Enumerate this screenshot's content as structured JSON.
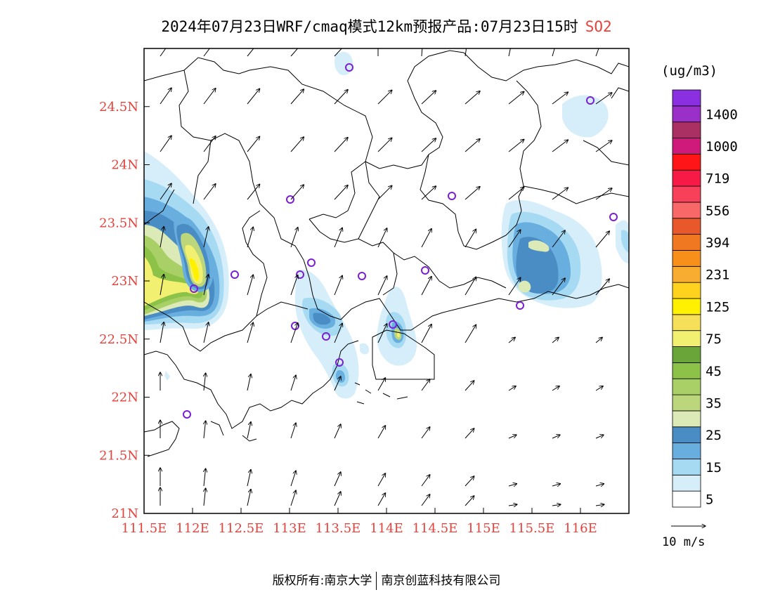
{
  "header": {
    "title": "2024年07月23日WRF/cmaq模式12km预报产品:07月23日15时",
    "pollutant": "SO2"
  },
  "colors": {
    "tick_label": "#e8413c",
    "station_marker": "#7a1fd6",
    "pollutant_label": "#e8413c"
  },
  "map": {
    "lon_range": [
      111.5,
      116.5
    ],
    "lat_range": [
      21.0,
      25.0
    ],
    "x_ticks": [
      "111.5E",
      "112E",
      "112.5E",
      "113E",
      "113.5E",
      "114E",
      "114.5E",
      "115E",
      "115.5E",
      "116E"
    ],
    "y_ticks": [
      "21N",
      "21.5N",
      "22N",
      "22.5N",
      "23N",
      "23.5N",
      "24N",
      "24.5N"
    ]
  },
  "legend": {
    "unit": "(ug/m3)",
    "bands": [
      {
        "color": "#ffffff",
        "label": "5"
      },
      {
        "color": "#d6eefa",
        "label": ""
      },
      {
        "color": "#a6daf3",
        "label": "15"
      },
      {
        "color": "#68aede",
        "label": ""
      },
      {
        "color": "#4a8cc4",
        "label": "25"
      },
      {
        "color": "#dceab7",
        "label": ""
      },
      {
        "color": "#bcd67c",
        "label": "35"
      },
      {
        "color": "#a8d066",
        "label": ""
      },
      {
        "color": "#8cc248",
        "label": "45"
      },
      {
        "color": "#6aa53a",
        "label": ""
      },
      {
        "color": "#f2f070",
        "label": "75"
      },
      {
        "color": "#f6e05a",
        "label": ""
      },
      {
        "color": "#fff100",
        "label": "125"
      },
      {
        "color": "#ffd21e",
        "label": ""
      },
      {
        "color": "#f9ad30",
        "label": "231"
      },
      {
        "color": "#f88f1a",
        "label": ""
      },
      {
        "color": "#f07820",
        "label": "394"
      },
      {
        "color": "#e8582a",
        "label": ""
      },
      {
        "color": "#f86868",
        "label": "556"
      },
      {
        "color": "#f8405a",
        "label": ""
      },
      {
        "color": "#f81a46",
        "label": "719"
      },
      {
        "color": "#ff1515",
        "label": ""
      },
      {
        "color": "#cf1a79",
        "label": "1000"
      },
      {
        "color": "#aa3064",
        "label": ""
      },
      {
        "color": "#9a30c8",
        "label": "1400"
      },
      {
        "color": "#8a30e0",
        "label": ""
      }
    ]
  },
  "wind": {
    "reference_label": "10 m/s"
  },
  "footer": {
    "left": "版权所有:南京大学",
    "right": "南京创蓝科技有限公司"
  }
}
